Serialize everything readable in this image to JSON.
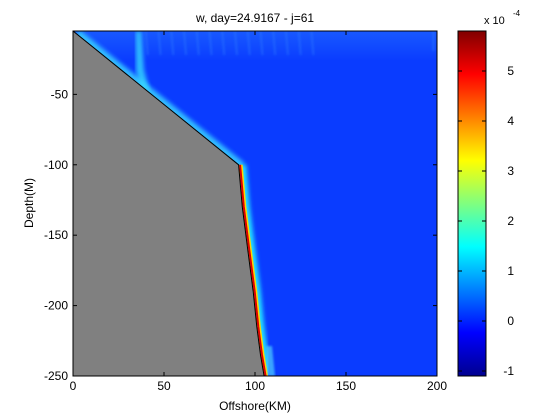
{
  "chart_data": {
    "type": "heatmap",
    "title": "w, day=24.9167 - j=61",
    "xlabel": "Offshore(KM)",
    "ylabel": "Depth(M)",
    "xlim": [
      0,
      200
    ],
    "ylim": [
      -250,
      -5
    ],
    "x_ticks": [
      0,
      50,
      100,
      150,
      200
    ],
    "x_tick_labels": [
      "0",
      "50",
      "100",
      "150",
      "200"
    ],
    "y_ticks": [
      -50,
      -100,
      -150,
      -200,
      -250
    ],
    "y_tick_labels": [
      "-50",
      "-100",
      "-150",
      "-200",
      "-250"
    ],
    "bathymetry_profile": {
      "x": [
        0,
        91,
        93,
        96,
        99,
        101,
        103,
        105
      ],
      "depth": [
        -5,
        -100,
        -130,
        -160,
        -190,
        -215,
        -235,
        -250
      ]
    },
    "land_color": "#808080",
    "colormap": "jet",
    "colorbar": {
      "range": [
        -1.1,
        5.8
      ],
      "ticks": [
        -1,
        0,
        1,
        2,
        3,
        4,
        5
      ],
      "tick_labels": [
        "-1",
        "0",
        "1",
        "2",
        "3",
        "4",
        "5"
      ],
      "multiplier_base": "x 10",
      "multiplier_exponent": "-4"
    },
    "field_description_values": {
      "background": 0.0,
      "slope_jet_peak": 5.8,
      "upper_slope_band": 1.2,
      "surface_plume_x": 37,
      "surface_plume_peak": 1.0
    }
  }
}
